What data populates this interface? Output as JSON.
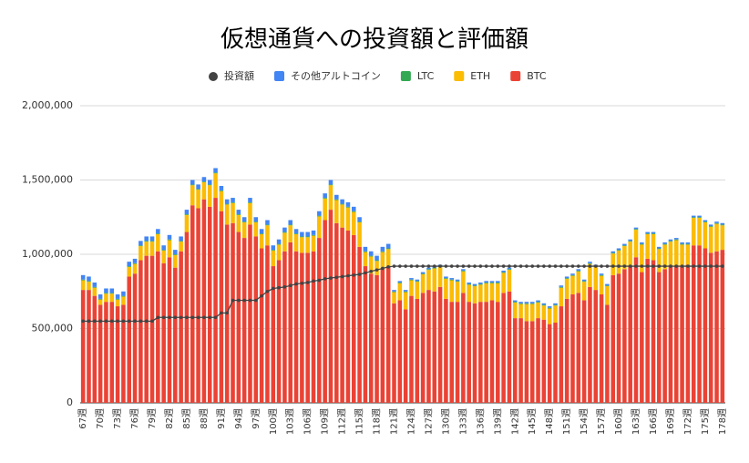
{
  "chart_data": {
    "type": "bar",
    "title": "仮想通貨への投資額と評価額",
    "stacked": true,
    "grid": true,
    "ylim": [
      0,
      2000000
    ],
    "yticks": [
      {
        "value": 0,
        "label": "0"
      },
      {
        "value": 500000,
        "label": "500,000"
      },
      {
        "value": 1000000,
        "label": "1,000,000"
      },
      {
        "value": 1500000,
        "label": "1,500,000"
      },
      {
        "value": 2000000,
        "label": "2,000,000"
      }
    ],
    "categories": [
      "67週",
      null,
      null,
      "70週",
      null,
      null,
      "73週",
      null,
      null,
      "76週",
      null,
      null,
      "79週",
      null,
      null,
      "82週",
      null,
      null,
      "85週",
      null,
      null,
      "88週",
      null,
      null,
      "91週",
      null,
      null,
      "94週",
      null,
      null,
      "97週",
      null,
      null,
      "100週",
      null,
      null,
      "103週",
      null,
      null,
      "106週",
      null,
      null,
      "109週",
      null,
      null,
      "112週",
      null,
      null,
      "115週",
      null,
      null,
      "118週",
      null,
      null,
      "121週",
      null,
      null,
      "124週",
      null,
      null,
      "127週",
      null,
      null,
      "130週",
      null,
      null,
      "133週",
      null,
      null,
      "136週",
      null,
      null,
      "139週",
      null,
      null,
      "142週",
      null,
      null,
      "145週",
      null,
      null,
      "148週",
      null,
      null,
      "151週",
      null,
      null,
      "154週",
      null,
      null,
      "157週",
      null,
      null,
      "160週",
      null,
      null,
      "163週",
      null,
      null,
      "166週",
      null,
      null,
      "169週",
      null,
      null,
      "172週",
      null,
      null,
      "175週",
      null,
      null,
      "178週"
    ],
    "series": [
      {
        "name": "投資額",
        "type": "line",
        "color": "#434343",
        "values": [
          550000,
          550000,
          550000,
          550000,
          550000,
          550000,
          550000,
          550000,
          550000,
          550000,
          550000,
          550000,
          550000,
          575000,
          575000,
          575000,
          575000,
          575000,
          575000,
          575000,
          575000,
          575000,
          575000,
          575000,
          605000,
          605000,
          690000,
          690000,
          690000,
          690000,
          690000,
          720000,
          750000,
          770000,
          775000,
          780000,
          790000,
          800000,
          805000,
          810000,
          820000,
          825000,
          835000,
          840000,
          845000,
          850000,
          855000,
          860000,
          865000,
          875000,
          885000,
          895000,
          905000,
          915000,
          920000,
          920000,
          920000,
          920000,
          920000,
          920000,
          920000,
          920000,
          920000,
          920000,
          920000,
          920000,
          920000,
          920000,
          920000,
          920000,
          920000,
          920000,
          920000,
          920000,
          920000,
          920000,
          920000,
          920000,
          920000,
          920000,
          920000,
          920000,
          920000,
          920000,
          920000,
          920000,
          920000,
          920000,
          920000,
          920000,
          920000,
          920000,
          920000,
          920000,
          920000,
          920000,
          920000,
          920000,
          920000,
          920000,
          920000,
          920000,
          920000,
          920000,
          920000,
          920000,
          920000,
          920000,
          920000,
          920000,
          920000,
          920000
        ]
      },
      {
        "name": "その他アルトコイン",
        "color": "#4285f4",
        "values": [
          30000,
          30000,
          30000,
          30000,
          30000,
          30000,
          30000,
          30000,
          30000,
          30000,
          30000,
          30000,
          30000,
          30000,
          30000,
          30000,
          30000,
          30000,
          30000,
          30000,
          30000,
          30000,
          30000,
          30000,
          30000,
          30000,
          30000,
          30000,
          30000,
          30000,
          30000,
          30000,
          30000,
          30000,
          30000,
          30000,
          30000,
          30000,
          30000,
          30000,
          30000,
          30000,
          30000,
          30000,
          30000,
          30000,
          30000,
          30000,
          30000,
          30000,
          30000,
          30000,
          30000,
          30000,
          10000,
          10000,
          10000,
          10000,
          10000,
          10000,
          10000,
          10000,
          10000,
          10000,
          10000,
          10000,
          10000,
          10000,
          10000,
          10000,
          10000,
          10000,
          10000,
          10000,
          10000,
          10000,
          10000,
          10000,
          10000,
          10000,
          10000,
          10000,
          10000,
          10000,
          10000,
          10000,
          10000,
          10000,
          10000,
          10000,
          10000,
          10000,
          10000,
          10000,
          10000,
          10000,
          10000,
          10000,
          10000,
          10000,
          10000,
          10000,
          10000,
          10000,
          10000,
          10000,
          10000,
          10000,
          10000,
          10000,
          10000,
          10000
        ]
      },
      {
        "name": "LTC",
        "color": "#34a853",
        "values": [
          5000,
          5000,
          5000,
          5000,
          5000,
          5000,
          5000,
          5000,
          5000,
          5000,
          5000,
          5000,
          5000,
          5000,
          5000,
          5000,
          5000,
          5000,
          5000,
          5000,
          5000,
          5000,
          5000,
          5000,
          5000,
          5000,
          5000,
          5000,
          5000,
          5000,
          5000,
          5000,
          5000,
          5000,
          5000,
          5000,
          5000,
          5000,
          5000,
          5000,
          5000,
          5000,
          5000,
          5000,
          5000,
          5000,
          5000,
          5000,
          5000,
          5000,
          5000,
          5000,
          5000,
          5000,
          5000,
          5000,
          5000,
          5000,
          5000,
          5000,
          5000,
          5000,
          5000,
          5000,
          5000,
          5000,
          5000,
          5000,
          5000,
          5000,
          5000,
          5000,
          5000,
          5000,
          5000,
          5000,
          5000,
          5000,
          5000,
          5000,
          5000,
          5000,
          5000,
          5000,
          5000,
          5000,
          5000,
          5000,
          5000,
          5000,
          5000,
          5000,
          5000,
          5000,
          5000,
          5000,
          5000,
          5000,
          5000,
          5000,
          5000,
          5000,
          5000,
          5000,
          5000,
          5000,
          5000,
          5000,
          5000,
          5000,
          5000,
          5000
        ]
      },
      {
        "name": "ETH",
        "color": "#fbbc04",
        "values": [
          65000,
          55000,
          55000,
          35000,
          55000,
          55000,
          45000,
          55000,
          65000,
          65000,
          95000,
          95000,
          95000,
          115000,
          85000,
          115000,
          85000,
          65000,
          115000,
          135000,
          125000,
          115000,
          145000,
          165000,
          135000,
          135000,
          135000,
          115000,
          105000,
          145000,
          95000,
          95000,
          135000,
          105000,
          105000,
          125000,
          115000,
          115000,
          105000,
          105000,
          105000,
          145000,
          145000,
          165000,
          155000,
          155000,
          155000,
          155000,
          165000,
          95000,
          115000,
          95000,
          115000,
          115000,
          75000,
          115000,
          115000,
          105000,
          115000,
          125000,
          135000,
          155000,
          135000,
          135000,
          145000,
          135000,
          145000,
          115000,
          115000,
          115000,
          125000,
          115000,
          125000,
          135000,
          145000,
          105000,
          95000,
          115000,
          115000,
          105000,
          95000,
          105000,
          115000,
          125000,
          135000,
          125000,
          145000,
          125000,
          155000,
          155000,
          125000,
          125000,
          145000,
          155000,
          155000,
          165000,
          185000,
          185000,
          165000,
          175000,
          155000,
          165000,
          165000,
          175000,
          145000,
          135000,
          185000,
          185000,
          175000,
          175000,
          185000,
          165000
        ]
      },
      {
        "name": "BTC",
        "color": "#ea4335",
        "values": [
          760000,
          760000,
          720000,
          660000,
          680000,
          680000,
          650000,
          660000,
          850000,
          870000,
          960000,
          990000,
          990000,
          1020000,
          940000,
          980000,
          910000,
          1020000,
          1150000,
          1330000,
          1310000,
          1370000,
          1320000,
          1380000,
          1290000,
          1200000,
          1210000,
          1150000,
          1110000,
          1200000,
          1120000,
          1040000,
          1060000,
          920000,
          960000,
          1020000,
          1080000,
          1020000,
          1010000,
          1010000,
          1020000,
          1110000,
          1230000,
          1300000,
          1210000,
          1180000,
          1160000,
          1130000,
          1050000,
          920000,
          870000,
          860000,
          900000,
          920000,
          670000,
          690000,
          630000,
          720000,
          700000,
          740000,
          760000,
          750000,
          780000,
          700000,
          680000,
          680000,
          740000,
          680000,
          670000,
          680000,
          680000,
          690000,
          680000,
          740000,
          750000,
          570000,
          570000,
          550000,
          550000,
          570000,
          560000,
          530000,
          540000,
          650000,
          700000,
          730000,
          740000,
          690000,
          780000,
          760000,
          730000,
          660000,
          860000,
          870000,
          900000,
          920000,
          980000,
          880000,
          970000,
          960000,
          880000,
          900000,
          920000,
          920000,
          920000,
          930000,
          1060000,
          1060000,
          1040000,
          1010000,
          1020000,
          1030000
        ]
      }
    ]
  }
}
